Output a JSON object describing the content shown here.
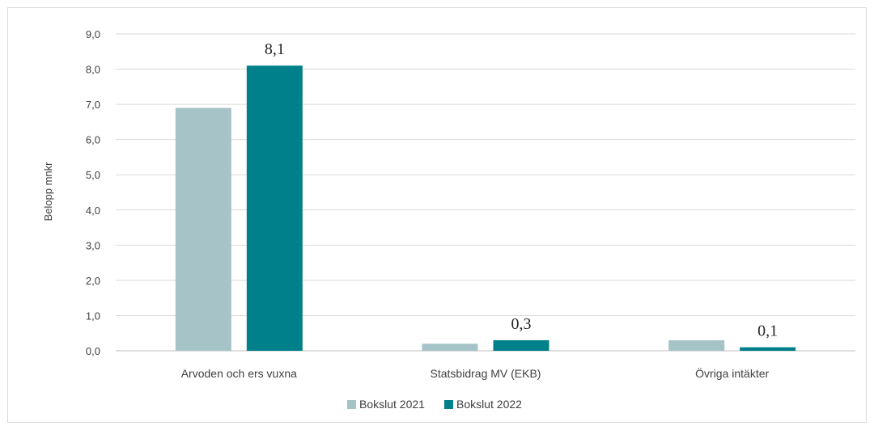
{
  "chart_data": {
    "type": "bar",
    "title": "",
    "xlabel": "",
    "ylabel": "Belopp mnkr",
    "ylim": [
      0,
      9
    ],
    "yticks": [
      "0,0",
      "1,0",
      "2,0",
      "3,0",
      "4,0",
      "5,0",
      "6,0",
      "7,0",
      "8,0",
      "9,0"
    ],
    "grid": true,
    "legend_position": "bottom",
    "categories": [
      "Arvoden och ers vuxna",
      "Statsbidrag MV (EKB)",
      "Övriga intäkter"
    ],
    "series": [
      {
        "name": "Bokslut 2021",
        "color": "#a6c3c7",
        "values": [
          6.9,
          0.2,
          0.3
        ],
        "data_labels": [
          "",
          "",
          ""
        ]
      },
      {
        "name": "Bokslut 2022",
        "color": "#00808a",
        "values": [
          8.1,
          0.3,
          0.1
        ],
        "data_labels": [
          "8,1",
          "0,3",
          "0,1"
        ]
      }
    ]
  }
}
